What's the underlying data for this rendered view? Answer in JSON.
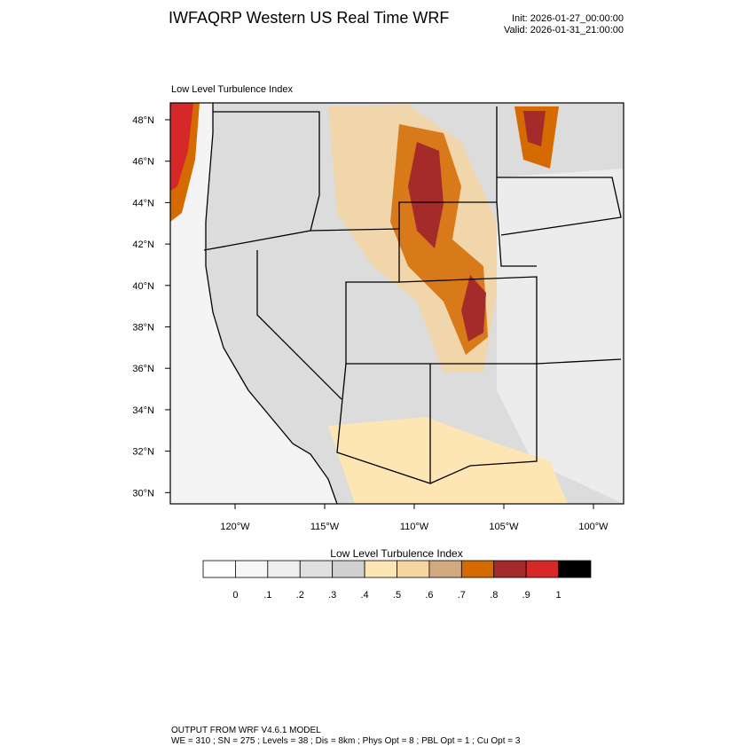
{
  "header": {
    "title": "IWFAQRP Western US Real Time WRF",
    "init": "Init: 2026-01-27_00:00:00",
    "valid": "Valid: 2026-01-31_21:00:00"
  },
  "map": {
    "title": "Low Level Turbulence Index",
    "lat_labels": [
      "48°N",
      "46°N",
      "44°N",
      "42°N",
      "40°N",
      "38°N",
      "36°N",
      "34°N",
      "32°N",
      "30°N"
    ],
    "lon_labels": [
      "120°W",
      "115°W",
      "110°W",
      "105°W",
      "100°W"
    ]
  },
  "colorbar": {
    "title": "Low Level Turbulence Index",
    "labels": [
      "0",
      ".1",
      ".2",
      ".3",
      ".4",
      ".5",
      ".6",
      ".7",
      ".8",
      ".9",
      "1"
    ]
  },
  "footer": {
    "lines": [
      "OUTPUT FROM WRF V4.6.1 MODEL",
      "WE = 310 ; SN = 275 ; Levels = 38 ; Dis = 8km ; Phys Opt = 8 ; PBL Opt = 1 ; Cu Opt = 3"
    ]
  }
}
